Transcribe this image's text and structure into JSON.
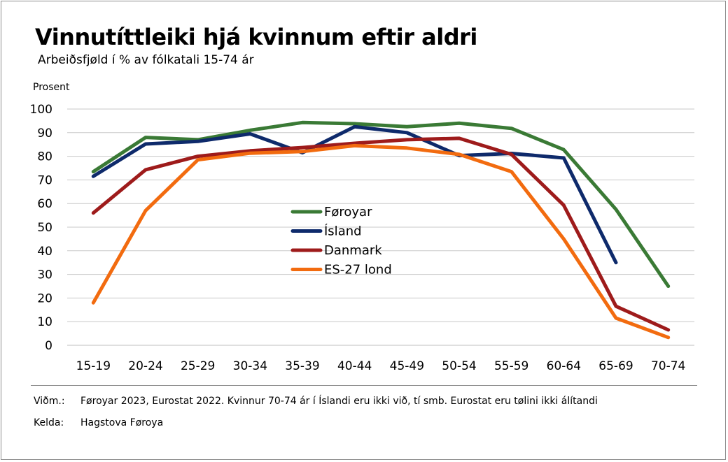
{
  "chart_data": {
    "type": "line",
    "title": "Vinnutíttleiki hjá kvinnum eftir aldri",
    "subtitle": "Arbeiðsfjøld í % av fólkatali 15-74 ár",
    "ylabel": "Prosent",
    "xlabel": "",
    "ylim": [
      0,
      100
    ],
    "yticks": [
      0,
      10,
      20,
      30,
      40,
      50,
      60,
      70,
      80,
      90,
      100
    ],
    "grid": true,
    "legend_position": "center",
    "categories": [
      "15-19",
      "20-24",
      "25-29",
      "30-34",
      "35-39",
      "40-44",
      "45-49",
      "50-54",
      "55-59",
      "60-64",
      "65-69",
      "70-74"
    ],
    "series": [
      {
        "name": "Føroyar",
        "color": "#3a7a35",
        "values": [
          73.5,
          88,
          87,
          91,
          94.3,
          93.8,
          92.5,
          94,
          91.8,
          82.8,
          57.5,
          25
        ]
      },
      {
        "name": "Ísland",
        "color": "#0e2a6b",
        "values": [
          71.5,
          85.2,
          86.3,
          89.5,
          81.5,
          92.5,
          90,
          80.3,
          81.2,
          79.3,
          35,
          null
        ]
      },
      {
        "name": "Danmark",
        "color": "#9e1b1b",
        "values": [
          56,
          74.3,
          80,
          82.3,
          83.7,
          85.5,
          87,
          87.6,
          80.8,
          59.3,
          16.5,
          6.5
        ]
      },
      {
        "name": "ES-27 lond",
        "color": "#f26b0f",
        "values": [
          18,
          57,
          78.5,
          81.3,
          82,
          84.5,
          83.5,
          80.8,
          73.5,
          45,
          11.5,
          3.3
        ]
      }
    ]
  },
  "footer": {
    "note_key": "Viðm.:",
    "note_text": "Føroyar 2023, Eurostat 2022. Kvinnur 70-74 ár í Íslandi eru ikki við, tí smb. Eurostat eru tølini ikki álítandi",
    "source_key": "Kelda:",
    "source_text": "Hagstova Føroya"
  }
}
